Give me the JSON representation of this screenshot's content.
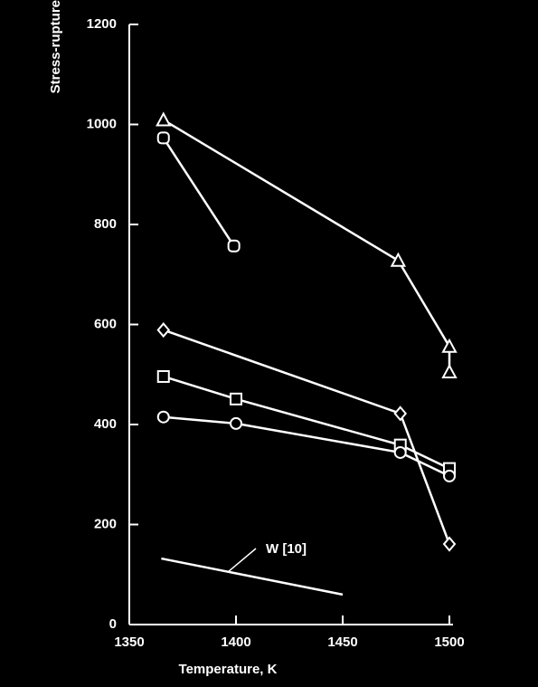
{
  "chart_data": {
    "type": "line",
    "ylabel": "Stress-rupture",
    "xlabel": "Temperature, K",
    "annotation": "W [10]",
    "xlim": [
      1350,
      1500
    ],
    "xticks": [
      1350,
      1400,
      1450,
      1500
    ],
    "ylim": [
      0,
      1200
    ],
    "yticks": [
      0,
      200,
      400,
      600,
      800,
      1000,
      1200
    ],
    "series": [
      {
        "color": "#ffffff",
        "marker": "triangle",
        "x": [
          1366,
          1476,
          1500,
          1500
        ],
        "values": [
          1009,
          728,
          556,
          505
        ]
      },
      {
        "color": "#ffffff",
        "marker": "circle-square",
        "x": [
          1366,
          1399
        ],
        "values": [
          973,
          757
        ]
      },
      {
        "color": "#ffffff",
        "marker": "diamond",
        "x": [
          1366,
          1477,
          1500
        ],
        "values": [
          589,
          422,
          161
        ]
      },
      {
        "color": "#ffffff",
        "marker": "square",
        "x": [
          1366,
          1400,
          1477,
          1500
        ],
        "values": [
          496,
          451,
          359,
          312
        ]
      },
      {
        "color": "#ffffff",
        "marker": "circle",
        "x": [
          1366,
          1400,
          1477,
          1500
        ],
        "values": [
          415,
          402,
          344,
          297
        ]
      },
      {
        "color": "#ffffff",
        "marker": "none",
        "x": [
          1365,
          1450
        ],
        "values": [
          132,
          60
        ]
      }
    ]
  }
}
